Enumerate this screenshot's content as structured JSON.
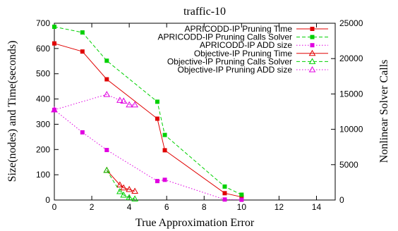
{
  "chart_data": {
    "type": "line",
    "title": "traffic-10",
    "xlabel": "True Approximation Error",
    "ylabel": "Size(nodes) and Time(seconds)",
    "y2label": "Nonlinear Solver Calls",
    "xlim": [
      0,
      15
    ],
    "ylim": [
      0,
      700
    ],
    "y2lim": [
      0,
      25000
    ],
    "xticks": [
      0,
      2,
      4,
      6,
      8,
      10,
      12,
      14
    ],
    "yticks": [
      0,
      100,
      200,
      300,
      400,
      500,
      600,
      700
    ],
    "y2ticks": [
      0,
      5000,
      10000,
      15000,
      20000,
      25000
    ],
    "grid": false,
    "legend_position": "top-right",
    "series": [
      {
        "name": "APRICODD-IP Pruning Time",
        "axis": "left",
        "color": "#e00000",
        "dash": "solid",
        "marker": "square-filled",
        "x": [
          0,
          1.5,
          2.8,
          5.5,
          5.9,
          9.1,
          10
        ],
        "y": [
          620,
          588,
          478,
          322,
          197,
          27,
          12
        ]
      },
      {
        "name": "APRICODD-IP Pruning Calls Solver",
        "axis": "right",
        "color": "#00d000",
        "dash": "dashed",
        "marker": "square-filled",
        "x": [
          0,
          1.5,
          2.8,
          5.5,
          5.9,
          9.1,
          10
        ],
        "y": [
          24500,
          23700,
          19700,
          13900,
          9200,
          1900,
          750
        ]
      },
      {
        "name": "APRICODD-IP ADD size",
        "axis": "left",
        "color": "#e000e0",
        "dash": "dotted",
        "marker": "square-filled",
        "x": [
          0,
          1.5,
          2.8,
          5.5,
          5.9,
          9.1,
          10
        ],
        "y": [
          357,
          268,
          198,
          75,
          80,
          2,
          1
        ]
      },
      {
        "name": "Objective-IP Pruning Time",
        "axis": "left",
        "color": "#e00000",
        "dash": "solid",
        "marker": "triangle-open",
        "x": [
          2.8,
          3.5,
          3.7,
          4.0,
          4.3
        ],
        "y": [
          118,
          60,
          48,
          42,
          35
        ]
      },
      {
        "name": "Objective-IP Pruning Calls Solver",
        "axis": "right",
        "color": "#00d000",
        "dash": "dashed",
        "marker": "triangle-open",
        "x": [
          2.8,
          3.5,
          3.7,
          4.0,
          4.3
        ],
        "y": [
          4200,
          1200,
          700,
          350,
          150
        ]
      },
      {
        "name": "Objective-IP Pruning ADD size",
        "axis": "left",
        "color": "#e000e0",
        "dash": "dotted",
        "marker": "triangle-open",
        "x": [
          0,
          2.8,
          3.5,
          3.7,
          4.0,
          4.3
        ],
        "y": [
          357,
          418,
          395,
          392,
          377,
          377
        ]
      }
    ]
  }
}
